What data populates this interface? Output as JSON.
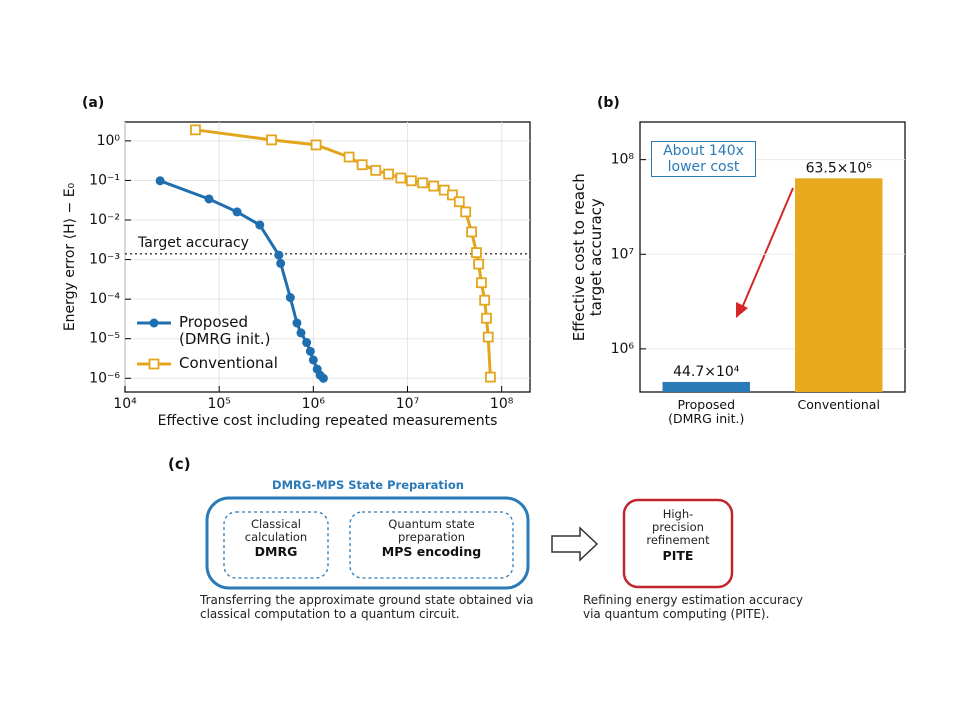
{
  "chart_data": [
    {
      "type": "line",
      "title": "(a)",
      "xlabel": "Effective cost including repeated measurements",
      "ylabel": "Energy error ⟨H⟩ − E₀",
      "xscale": "log",
      "yscale": "log",
      "xlim": [
        10000,
        200000000
      ],
      "ylim": [
        4.5e-07,
        3
      ],
      "xticks": [
        {
          "value": 10000,
          "label": "10⁴"
        },
        {
          "value": 100000,
          "label": "10⁵"
        },
        {
          "value": 1000000,
          "label": "10⁶"
        },
        {
          "value": 10000000,
          "label": "10⁷"
        },
        {
          "value": 100000000,
          "label": "10⁸"
        }
      ],
      "yticks": [
        {
          "value": 1e-06,
          "label": "10⁻⁶"
        },
        {
          "value": 1e-05,
          "label": "10⁻⁵"
        },
        {
          "value": 0.0001,
          "label": "10⁻⁴"
        },
        {
          "value": 0.001,
          "label": "10⁻³"
        },
        {
          "value": 0.01,
          "label": "10⁻²"
        },
        {
          "value": 0.1,
          "label": "10⁻¹"
        },
        {
          "value": 1,
          "label": "10⁰"
        }
      ],
      "grid": true,
      "legend": "lower left",
      "annotation": {
        "text": "Target accuracy",
        "y": 0.0014
      },
      "series": [
        {
          "name": "Proposed\n(DMRG init.)",
          "color": "#1f6fb0",
          "marker": "circle",
          "x": [
            23600,
            78000,
            155000,
            270000,
            430000,
            450000,
            570000,
            670000,
            740000,
            850000,
            930000,
            1000000,
            1100000,
            1180000,
            1280000
          ],
          "values": [
            0.098,
            0.034,
            0.016,
            0.0075,
            0.0013,
            0.0008,
            0.00011,
            2.5e-05,
            1.4e-05,
            8e-06,
            4.8e-06,
            2.9e-06,
            1.7e-06,
            1.2e-06,
            1e-06
          ]
        },
        {
          "name": "Conventional",
          "color": "#e3a51c",
          "marker": "square",
          "x": [
            56000,
            360000,
            1070000,
            2400000,
            3300000,
            4600000,
            6300000,
            8500000,
            11000000,
            14500000,
            19000000,
            24600000,
            30000000,
            35500000,
            41500000,
            48000000,
            54000000,
            57000000,
            61000000,
            66000000,
            69000000,
            72000000,
            76000000
          ],
          "values": [
            1.9,
            1.06,
            0.79,
            0.39,
            0.25,
            0.18,
            0.145,
            0.115,
            0.098,
            0.087,
            0.072,
            0.057,
            0.043,
            0.029,
            0.016,
            0.005,
            0.0015,
            0.00077,
            0.00026,
            9.4e-05,
            3.3e-05,
            1.1e-05,
            1.07e-06
          ]
        }
      ]
    },
    {
      "type": "bar",
      "title": "(b)",
      "ylabel": "Effective cost to reach\ntarget accuracy",
      "yscale": "log",
      "ylim": [
        350000,
        250000000
      ],
      "yticks": [
        {
          "value": 1000000,
          "label": "10⁶"
        },
        {
          "value": 10000000,
          "label": "10⁷"
        },
        {
          "value": 100000000,
          "label": "10⁸"
        }
      ],
      "grid": true,
      "categories": [
        "Proposed\n(DMRG init.)",
        "Conventional"
      ],
      "values": [
        447000,
        63500000
      ],
      "value_labels": [
        "44.7×10⁴",
        "63.5×10⁶"
      ],
      "colors": [
        "#2a7ab8",
        "#e8a91e"
      ],
      "annotation": "About 140x\nlower cost"
    }
  ],
  "diagram": {
    "title": "(c)",
    "group_title": "DMRG-MPS State Preparation",
    "nodes": [
      {
        "label": "Classical\ncalculation",
        "name": "DMRG"
      },
      {
        "label": "Quantum state\npreparation",
        "name": "MPS encoding"
      },
      {
        "label": "High-\nprecision\nrefinement",
        "name": "PITE"
      }
    ],
    "captions": [
      "Transferring the approximate ground state obtained via\nclassical computation to a quantum circuit.",
      "Refining energy estimation accuracy\nvia quantum computing (PITE)."
    ]
  }
}
